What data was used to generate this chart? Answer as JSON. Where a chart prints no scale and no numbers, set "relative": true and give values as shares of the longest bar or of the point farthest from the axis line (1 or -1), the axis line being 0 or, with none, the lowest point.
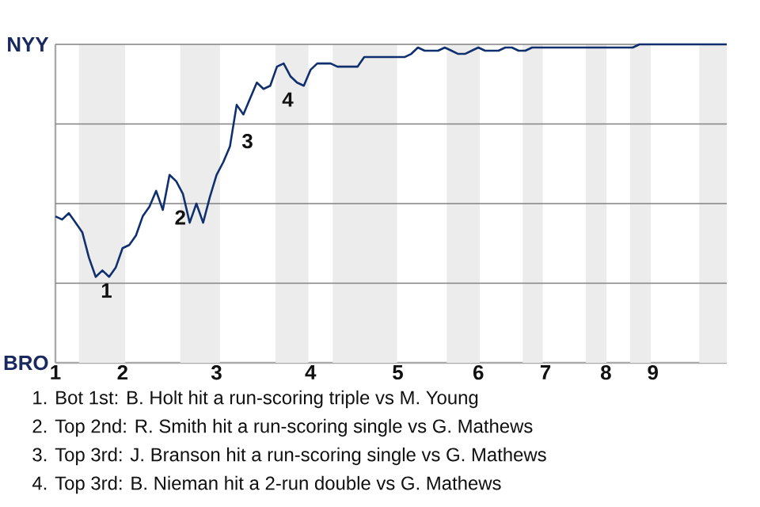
{
  "chart_data": {
    "type": "line",
    "relative": true,
    "categories": [
      "1",
      null,
      null,
      null,
      null,
      null,
      null,
      null,
      null,
      null,
      "2",
      null,
      null,
      null,
      null,
      null,
      null,
      null,
      null,
      null,
      null,
      null,
      null,
      null,
      "3",
      null,
      null,
      null,
      null,
      null,
      null,
      null,
      null,
      null,
      null,
      null,
      null,
      null,
      "4",
      null,
      null,
      null,
      null,
      null,
      null,
      null,
      null,
      null,
      null,
      null,
      null,
      "5",
      null,
      null,
      null,
      null,
      null,
      null,
      null,
      null,
      null,
      null,
      null,
      "6",
      null,
      null,
      null,
      null,
      null,
      null,
      null,
      null,
      null,
      "7",
      null,
      null,
      null,
      null,
      null,
      null,
      null,
      null,
      "8",
      null,
      null,
      null,
      null,
      null,
      null,
      "9",
      null,
      null,
      null,
      null,
      null,
      null,
      null,
      null,
      null,
      null,
      null
    ],
    "grid": "y",
    "series": [
      {
        "color": "#102f6e",
        "values": [
          0.46,
          0.45,
          0.47,
          0.44,
          0.41,
          0.33,
          0.27,
          0.29,
          0.27,
          0.3,
          0.36,
          0.37,
          0.4,
          0.46,
          0.49,
          0.54,
          0.48,
          0.59,
          0.57,
          0.53,
          0.44,
          0.5,
          0.44,
          0.52,
          0.59,
          0.63,
          0.68,
          0.81,
          0.78,
          0.83,
          0.88,
          0.86,
          0.87,
          0.93,
          0.94,
          0.9,
          0.88,
          0.87,
          0.92,
          0.94,
          0.94,
          0.94,
          0.93,
          0.93,
          0.93,
          0.93,
          0.96,
          0.96,
          0.96,
          0.96,
          0.96,
          0.96,
          0.96,
          0.97,
          0.99,
          0.98,
          0.98,
          0.98,
          0.99,
          0.98,
          0.97,
          0.97,
          0.98,
          0.99,
          0.98,
          0.98,
          0.98,
          0.99,
          0.99,
          0.98,
          0.98,
          0.99,
          0.99,
          0.99,
          0.99,
          0.99,
          0.99,
          0.99,
          0.99,
          0.99,
          0.99,
          0.99,
          0.99,
          0.99,
          0.99,
          0.99,
          0.99,
          1.0,
          1.0,
          1.0,
          1.0,
          1.0,
          1.0,
          1.0,
          1.0,
          1.0,
          1.0,
          1.0,
          1.0,
          1.0,
          1.0
        ]
      }
    ],
    "annotations": [
      "NYY",
      "BRO",
      "1",
      "2",
      "3",
      "4",
      "1. Bot 1st: B. Holt hit a run-scoring triple vs M. Young",
      "2. Top 2nd: R. Smith hit a run-scoring single vs G. Mathews",
      "3. Top 3rd: J. Branson hit a run-scoring single vs G. Mathews",
      "4. Top 3rd: B. Nieman hit a 2-run double vs G. Mathews"
    ]
  }
}
